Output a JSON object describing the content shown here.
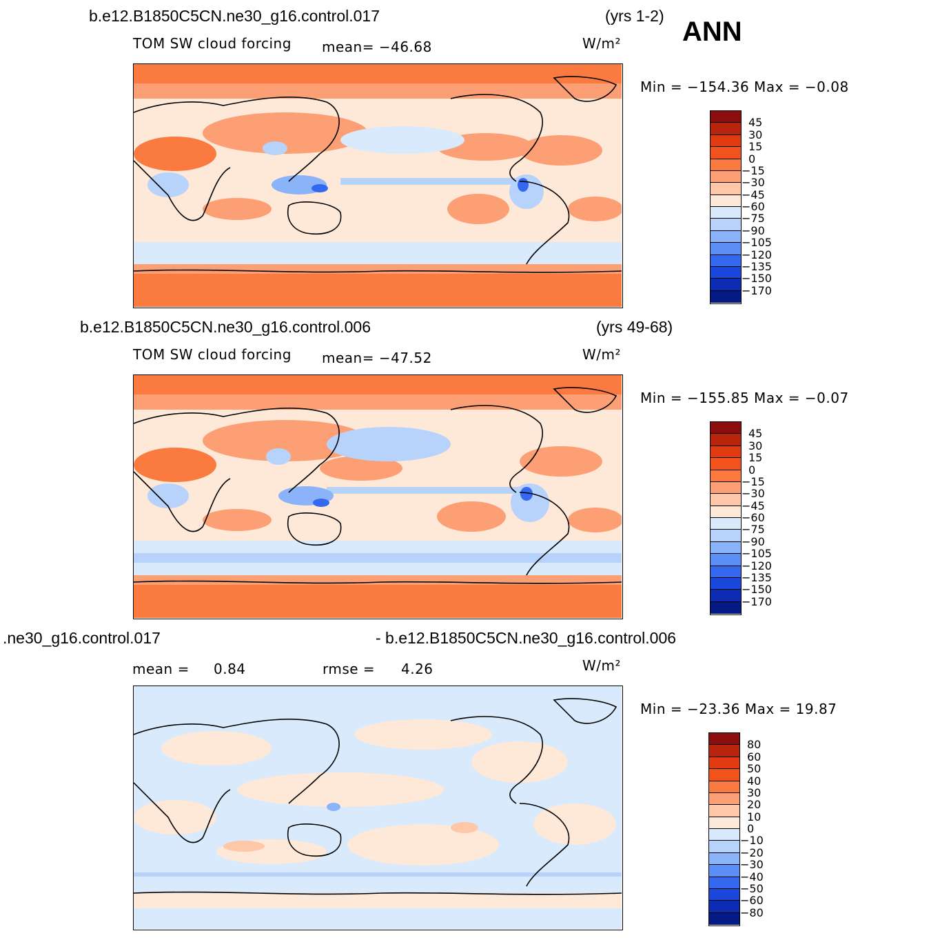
{
  "season": "ANN",
  "panels": [
    {
      "case": "b.e12.B1850C5CN.ne30_g16.control.017",
      "years": "(yrs 1-2)",
      "field": "TOM SW cloud forcing",
      "stat": "mean=  −46.68",
      "units": "W/m²",
      "minmax": "Min  =  −154.36  Max  =    −0.08",
      "levels": [
        "45",
        "30",
        "15",
        "0",
        "−15",
        "−30",
        "−45",
        "−60",
        "−75",
        "−90",
        "−105",
        "−120",
        "−135",
        "−150",
        "−170"
      ],
      "colors": [
        "#8b0d0d",
        "#b8250c",
        "#df3a10",
        "#f2521c",
        "#fa7a40",
        "#fc9f74",
        "#fdc7a8",
        "#fee8d8",
        "#d8eafb",
        "#b8d3fb",
        "#8ab3f9",
        "#5b8ff5",
        "#3468ef",
        "#1a48dc",
        "#0c2cb4",
        "#061a86"
      ]
    },
    {
      "case": "b.e12.B1850C5CN.ne30_g16.control.006",
      "years": "(yrs 49-68)",
      "field": "TOM SW cloud forcing",
      "stat": "mean=  −47.52",
      "units": "W/m²",
      "minmax": "Min  =  −155.85  Max  =    −0.07",
      "levels": [
        "45",
        "30",
        "15",
        "0",
        "−15",
        "−30",
        "−45",
        "−60",
        "−75",
        "−90",
        "−105",
        "−120",
        "−135",
        "−150",
        "−170"
      ],
      "colors": [
        "#8b0d0d",
        "#b8250c",
        "#df3a10",
        "#f2521c",
        "#fa7a40",
        "#fc9f74",
        "#fdc7a8",
        "#fee8d8",
        "#d8eafb",
        "#b8d3fb",
        "#8ab3f9",
        "#5b8ff5",
        "#3468ef",
        "#1a48dc",
        "#0c2cb4",
        "#061a86"
      ]
    },
    {
      "case_left": ".ne30_g16.control.017",
      "case_right": "- b.e12.B1850C5CN.ne30_g16.control.006",
      "mean_label": "mean  =",
      "mean_value": "0.84",
      "rmse_label": "rmse  =",
      "rmse_value": "4.26",
      "units": "W/m²",
      "minmax": "Min  =  −23.36  Max  =    19.87",
      "levels": [
        "80",
        "60",
        "50",
        "40",
        "30",
        "20",
        "10",
        "0",
        "−10",
        "−20",
        "−30",
        "−40",
        "−50",
        "−60",
        "−80"
      ],
      "colors": [
        "#8b0d0d",
        "#b8250c",
        "#df3a10",
        "#f2521c",
        "#fa7a40",
        "#fc9f74",
        "#fdc7a8",
        "#fee8d8",
        "#d8eafb",
        "#b8d3fb",
        "#8ab3f9",
        "#5b8ff5",
        "#3468ef",
        "#1a48dc",
        "#0c2cb4",
        "#061a86"
      ]
    }
  ]
}
